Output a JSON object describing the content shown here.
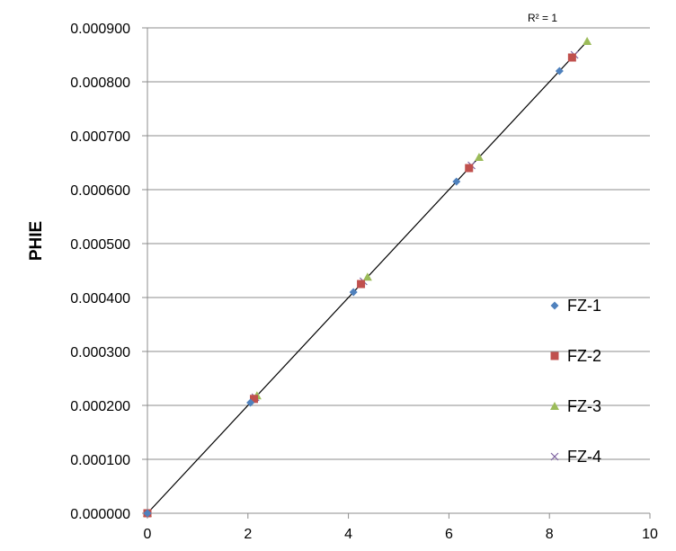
{
  "chart_data": {
    "type": "scatter",
    "title": "",
    "xlabel": "",
    "ylabel": "PHIE",
    "xlim": [
      0,
      10
    ],
    "ylim": [
      0,
      0.0009
    ],
    "x_ticks": [
      0,
      2,
      4,
      6,
      8,
      10
    ],
    "x_tick_labels": [
      "0",
      "2",
      "4",
      "6",
      "8",
      "10"
    ],
    "y_ticks": [
      0,
      0.0001,
      0.0002,
      0.0003,
      0.0004,
      0.0005,
      0.0006,
      0.0007,
      0.0008,
      0.0009
    ],
    "y_tick_labels": [
      "0.000000",
      "0.000100",
      "0.000200",
      "0.000300",
      "0.000400",
      "0.000500",
      "0.000600",
      "0.000700",
      "0.000800",
      "0.000900"
    ],
    "grid": {
      "horizontal": true,
      "vertical": false
    },
    "legend_position": "right",
    "annotation": "R² = 1",
    "trendline": {
      "type": "linear",
      "x": [
        0,
        8.75
      ],
      "y": [
        0,
        0.000875
      ],
      "color": "#000000"
    },
    "series": [
      {
        "name": "FZ-1",
        "marker": "diamond",
        "color": "#4f81bd",
        "x": [
          0,
          2.05,
          4.1,
          6.15,
          8.2
        ],
        "y": [
          0,
          0.000205,
          0.00041,
          0.000615,
          0.00082
        ]
      },
      {
        "name": "FZ-2",
        "marker": "square",
        "color": "#c0504d",
        "x": [
          0,
          2.12,
          4.25,
          6.4,
          8.45
        ],
        "y": [
          0,
          0.000212,
          0.000425,
          0.00064,
          0.000845
        ]
      },
      {
        "name": "FZ-3",
        "marker": "triangle",
        "color": "#9bbb59",
        "x": [
          0,
          2.18,
          4.38,
          6.6,
          8.75
        ],
        "y": [
          0,
          0.000218,
          0.000438,
          0.00066,
          0.000875
        ]
      },
      {
        "name": "FZ-4",
        "marker": "x",
        "color": "#8064a2",
        "x": [
          0,
          2.15,
          4.3,
          6.45,
          8.5
        ],
        "y": [
          0,
          0.000215,
          0.00043,
          0.000645,
          0.00085
        ]
      }
    ]
  }
}
